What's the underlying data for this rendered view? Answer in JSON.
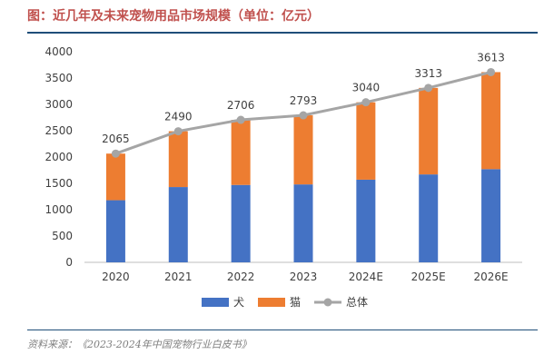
{
  "header": {
    "title": "图：近几年及未来宠物用品市场规模（单位：亿元）"
  },
  "footer": {
    "source": "资料来源：《2023-2024年中国宠物行业白皮书》"
  },
  "chart_data": {
    "type": "bar",
    "stacked": true,
    "title": "图：近几年及未来宠物用品市场规模（单位：亿元）",
    "categories": [
      "2020",
      "2021",
      "2022",
      "2023",
      "2024E",
      "2025E",
      "2026E"
    ],
    "series": [
      {
        "name": "犬",
        "kind": "bar",
        "color": "#4472c4",
        "values": [
          1180,
          1430,
          1470,
          1480,
          1570,
          1670,
          1770
        ]
      },
      {
        "name": "猫",
        "kind": "bar",
        "color": "#ed7d31",
        "values": [
          885,
          1060,
          1236,
          1313,
          1470,
          1643,
          1843
        ]
      },
      {
        "name": "总体",
        "kind": "line",
        "color": "#a5a5a5",
        "values": [
          2065,
          2490,
          2706,
          2793,
          3040,
          3313,
          3613
        ]
      }
    ],
    "data_labels": [
      "2065",
      "2490",
      "2706",
      "2793",
      "3040",
      "3313",
      "3613"
    ],
    "y_ticks": [
      "0",
      "500",
      "1000",
      "1500",
      "2000",
      "2500",
      "3000",
      "3500",
      "4000"
    ],
    "ylim": [
      0,
      4000
    ],
    "grid": false,
    "legend": {
      "position": "bottom",
      "labels": [
        "犬",
        "猫",
        "总体"
      ]
    }
  }
}
